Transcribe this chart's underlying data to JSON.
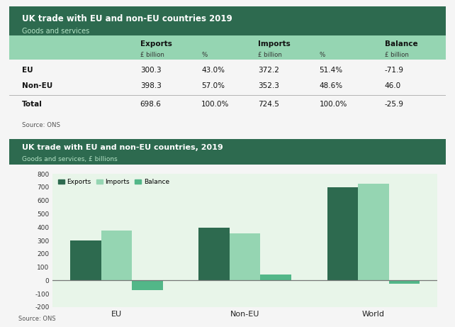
{
  "table_title": "UK trade with EU and non-EU countries 2019",
  "table_subtitle": "Goods and services",
  "chart_title": "UK trade with EU and non-EU countries, 2019",
  "chart_subtitle": "Goods and services, £ billions",
  "source": "Source: ONS",
  "rows": [
    [
      "EU",
      "300.3",
      "43.0%",
      "372.2",
      "51.4%",
      "-71.9"
    ],
    [
      "Non-EU",
      "398.3",
      "57.0%",
      "352.3",
      "48.6%",
      "46.0"
    ],
    [
      "Total",
      "698.6",
      "100.0%",
      "724.5",
      "100.0%",
      "-25.9"
    ]
  ],
  "bar_categories": [
    "EU",
    "Non-EU",
    "World"
  ],
  "exports": [
    300.3,
    398.3,
    698.6
  ],
  "imports": [
    372.2,
    352.3,
    724.5
  ],
  "balance": [
    -71.9,
    46.0,
    -25.9
  ],
  "color_exports": "#2d6a4f",
  "color_imports": "#95d5b2",
  "color_balance": "#52b788",
  "header_bg": "#2d6a4f",
  "header_text": "#ffffff",
  "subheader_bg": "#95d5b2",
  "table_bg": "#d8f3dc",
  "chart_bg": "#e8f5e9",
  "outer_bg": "#f5f5f5",
  "ylim": [
    -200,
    800
  ],
  "yticks": [
    -200,
    -100,
    0,
    100,
    200,
    300,
    400,
    500,
    600,
    700,
    800
  ]
}
